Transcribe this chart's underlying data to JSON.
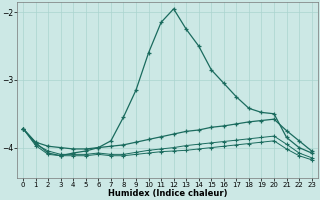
{
  "xlabel": "Humidex (Indice chaleur)",
  "bg_color": "#cce8e5",
  "line_color": "#1a6b5e",
  "grid_color": "#aad4cf",
  "xlim": [
    -0.5,
    23.5
  ],
  "ylim": [
    -4.45,
    -1.85
  ],
  "yticks": [
    -4,
    -3,
    -2
  ],
  "xticks": [
    0,
    1,
    2,
    3,
    4,
    5,
    6,
    7,
    8,
    9,
    10,
    11,
    12,
    13,
    14,
    15,
    16,
    17,
    18,
    19,
    20,
    21,
    22,
    23
  ],
  "line1_x": [
    0,
    1,
    2,
    3,
    4,
    5,
    6,
    7,
    8,
    9,
    10,
    11,
    12,
    13,
    14,
    15,
    16,
    17,
    18,
    19,
    20,
    21,
    22,
    23
  ],
  "line1_y": [
    -3.72,
    -3.93,
    -4.08,
    -4.12,
    -4.08,
    -4.05,
    -4.0,
    -3.9,
    -3.55,
    -3.15,
    -2.6,
    -2.15,
    -1.95,
    -2.25,
    -2.5,
    -2.85,
    -3.05,
    -3.25,
    -3.42,
    -3.48,
    -3.5,
    -3.85,
    -4.0,
    -4.08
  ],
  "line2_x": [
    0,
    1,
    2,
    3,
    4,
    5,
    6,
    7,
    8,
    9,
    10,
    11,
    12,
    13,
    14,
    15,
    16,
    17,
    18,
    19,
    20,
    21,
    22,
    23
  ],
  "line2_y": [
    -3.72,
    -3.92,
    -3.98,
    -4.0,
    -4.02,
    -4.02,
    -4.0,
    -3.98,
    -3.96,
    -3.92,
    -3.88,
    -3.84,
    -3.8,
    -3.76,
    -3.74,
    -3.7,
    -3.68,
    -3.65,
    -3.62,
    -3.6,
    -3.58,
    -3.75,
    -3.9,
    -4.05
  ],
  "line3_x": [
    0,
    1,
    2,
    3,
    4,
    5,
    6,
    7,
    8,
    9,
    10,
    11,
    12,
    13,
    14,
    15,
    16,
    17,
    18,
    19,
    20,
    21,
    22,
    23
  ],
  "line3_y": [
    -3.72,
    -3.97,
    -4.1,
    -4.12,
    -4.12,
    -4.12,
    -4.1,
    -4.12,
    -4.12,
    -4.1,
    -4.08,
    -4.06,
    -4.05,
    -4.04,
    -4.02,
    -4.0,
    -3.98,
    -3.96,
    -3.94,
    -3.92,
    -3.9,
    -4.02,
    -4.12,
    -4.18
  ],
  "line4_x": [
    0,
    1,
    2,
    3,
    4,
    5,
    6,
    7,
    8,
    9,
    10,
    11,
    12,
    13,
    14,
    15,
    16,
    17,
    18,
    19,
    20,
    21,
    22,
    23
  ],
  "line4_y": [
    -3.72,
    -3.95,
    -4.05,
    -4.1,
    -4.1,
    -4.1,
    -4.08,
    -4.1,
    -4.1,
    -4.07,
    -4.04,
    -4.02,
    -4.0,
    -3.97,
    -3.95,
    -3.93,
    -3.91,
    -3.89,
    -3.87,
    -3.85,
    -3.83,
    -3.95,
    -4.08,
    -4.15
  ]
}
